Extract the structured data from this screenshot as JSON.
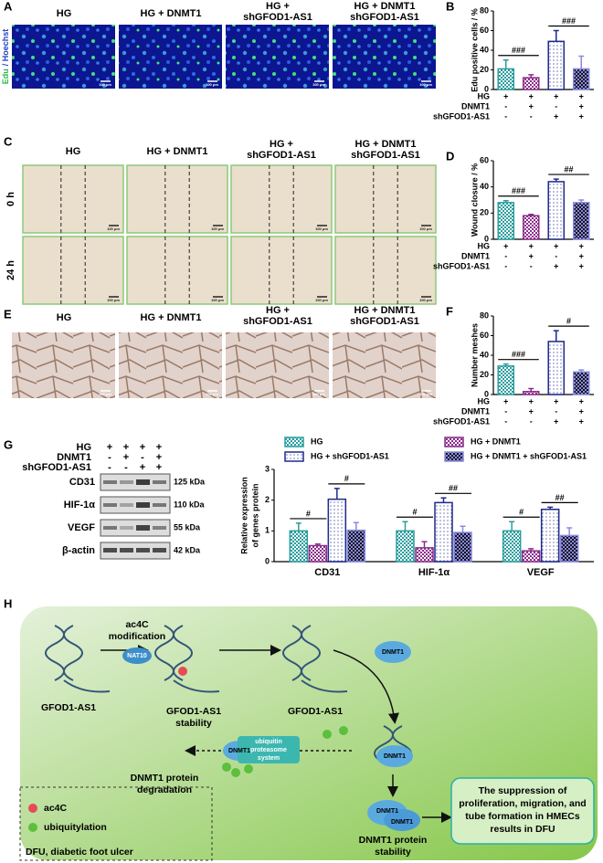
{
  "figure": {
    "letters": [
      "A",
      "B",
      "C",
      "D",
      "E",
      "F",
      "G",
      "H"
    ],
    "group_labels": [
      [
        "HG"
      ],
      [
        "HG + DNMT1"
      ],
      [
        "HG +",
        "shGFOD1-AS1"
      ],
      [
        "HG + DNMT1",
        "shGFOD1-AS1"
      ]
    ],
    "stain": [
      "Edu",
      "/ Hoechst"
    ],
    "times": [
      "0 h",
      "24 h"
    ],
    "scale_bar": "100 μm",
    "blot": {
      "conditions": [
        {
          "name": "HG",
          "signs": [
            "+",
            "+",
            "+",
            "+"
          ]
        },
        {
          "name": "DNMT1",
          "signs": [
            "-",
            "+",
            "-",
            "+"
          ]
        },
        {
          "name": "shGFOD1-AS1",
          "signs": [
            "-",
            "-",
            "+",
            "+"
          ]
        }
      ],
      "proteins": [
        "CD31",
        "HIF-1α",
        "VEGF",
        "β-actin"
      ],
      "sizes": [
        "125 kDa",
        "110 kDa",
        "55 kDa",
        "42 kDa"
      ]
    },
    "diagram": {
      "gfod1_as1": "GFOD1-AS1",
      "modification": [
        "ac4C",
        "modification"
      ],
      "nat10": "NAT10",
      "stability": [
        "GFOD1-AS1",
        "stability"
      ],
      "dnmt1": "DNMT1",
      "ups": [
        "ubiquitin",
        "proteasome",
        "system"
      ],
      "degradation": [
        "DNMT1 protein",
        "degradation"
      ],
      "dnmt1_stability": [
        "DNMT1 protein",
        "stability"
      ],
      "outcome": [
        "The suppression of",
        "proliferation, migration, and",
        "tube formation in HMECs",
        "results in DFU"
      ],
      "legend": [
        "ac4C",
        "ubiquitylation"
      ],
      "abbreviation": "DFU, diabetic foot ulcer"
    }
  },
  "chart_data": [
    {
      "type": "bar",
      "ylabel": [
        "Edu positive cells / %"
      ],
      "values": [
        21,
        12,
        49,
        21
      ],
      "errors": [
        9,
        3,
        11,
        13
      ],
      "colors": [
        "#2a9d9d",
        "#8b2d8b",
        "#1f2a8a",
        "#8a8ae0"
      ],
      "patterns": [
        "checker",
        "checker",
        "dots",
        "checker-dark"
      ],
      "ylim": [
        0,
        80
      ],
      "yticks": [
        0,
        20,
        40,
        60,
        80
      ],
      "annotations": [
        "###",
        "###"
      ],
      "conditions": [
        {
          "name": "HG",
          "signs": [
            "+",
            "+",
            "+",
            "+"
          ]
        },
        {
          "name": "DNMT1",
          "signs": [
            "-",
            "+",
            "-",
            "+"
          ]
        },
        {
          "name": "shGFOD1-AS1",
          "signs": [
            "-",
            "-",
            "+",
            "+"
          ]
        }
      ]
    },
    {
      "type": "bar",
      "ylabel": [
        "Wound closure / %"
      ],
      "values": [
        28,
        18,
        44,
        28
      ],
      "errors": [
        1.5,
        1,
        2,
        2
      ],
      "colors": [
        "#2a9d9d",
        "#8b2d8b",
        "#1f2a8a",
        "#8a8ae0"
      ],
      "patterns": [
        "checker",
        "checker",
        "dots",
        "checker-dark"
      ],
      "ylim": [
        0,
        60
      ],
      "yticks": [
        0,
        20,
        40,
        60
      ],
      "annotations": [
        "###",
        "##"
      ],
      "conditions": [
        {
          "name": "HG",
          "signs": [
            "+",
            "+",
            "+",
            "+"
          ]
        },
        {
          "name": "DNMT1",
          "signs": [
            "-",
            "+",
            "-",
            "+"
          ]
        },
        {
          "name": "shGFOD1-AS1",
          "signs": [
            "-",
            "-",
            "+",
            "+"
          ]
        }
      ]
    },
    {
      "type": "bar",
      "ylabel": [
        "Number meshes"
      ],
      "values": [
        29,
        3,
        54,
        23
      ],
      "errors": [
        2,
        3,
        11,
        2
      ],
      "colors": [
        "#2a9d9d",
        "#8b2d8b",
        "#1f2a8a",
        "#8a8ae0"
      ],
      "patterns": [
        "checker",
        "checker",
        "dots",
        "checker-dark"
      ],
      "ylim": [
        0,
        80
      ],
      "yticks": [
        0,
        20,
        40,
        60,
        80
      ],
      "annotations": [
        "###",
        "#"
      ],
      "conditions": [
        {
          "name": "HG",
          "signs": [
            "+",
            "+",
            "+",
            "+"
          ]
        },
        {
          "name": "DNMT1",
          "signs": [
            "-",
            "+",
            "-",
            "+"
          ]
        },
        {
          "name": "shGFOD1-AS1",
          "signs": [
            "-",
            "-",
            "+",
            "+"
          ]
        }
      ]
    },
    {
      "type": "grouped-bar",
      "ylabel": [
        "Relative expression",
        "of genes protein"
      ],
      "categories": [
        "CD31",
        "HIF-1α",
        "VEGF"
      ],
      "series": [
        {
          "name": "HG",
          "color": "#2a9d9d",
          "pattern": "checker",
          "values": [
            1.0,
            1.0,
            1.0
          ],
          "errors": [
            0.25,
            0.3,
            0.3
          ]
        },
        {
          "name": "HG + DNMT1",
          "color": "#8b2d8b",
          "pattern": "checker",
          "values": [
            0.52,
            0.45,
            0.35
          ],
          "errors": [
            0.05,
            0.2,
            0.07
          ]
        },
        {
          "name": "HG + shGFOD1-AS1",
          "color": "#1f2a8a",
          "pattern": "dots",
          "values": [
            2.03,
            1.92,
            1.7
          ],
          "errors": [
            0.35,
            0.15,
            0.07
          ]
        },
        {
          "name": "HG + DNMT1 + shGFOD1-AS1",
          "color": "#8a8ae0",
          "pattern": "checker-dark",
          "values": [
            1.02,
            0.95,
            0.85
          ],
          "errors": [
            0.25,
            0.2,
            0.25
          ]
        }
      ],
      "ylim": [
        0,
        3
      ],
      "yticks": [
        0,
        1,
        2,
        3
      ],
      "annotations": [
        [
          "#",
          "#"
        ],
        [
          "#",
          "##"
        ],
        [
          "#",
          "##"
        ]
      ]
    }
  ]
}
